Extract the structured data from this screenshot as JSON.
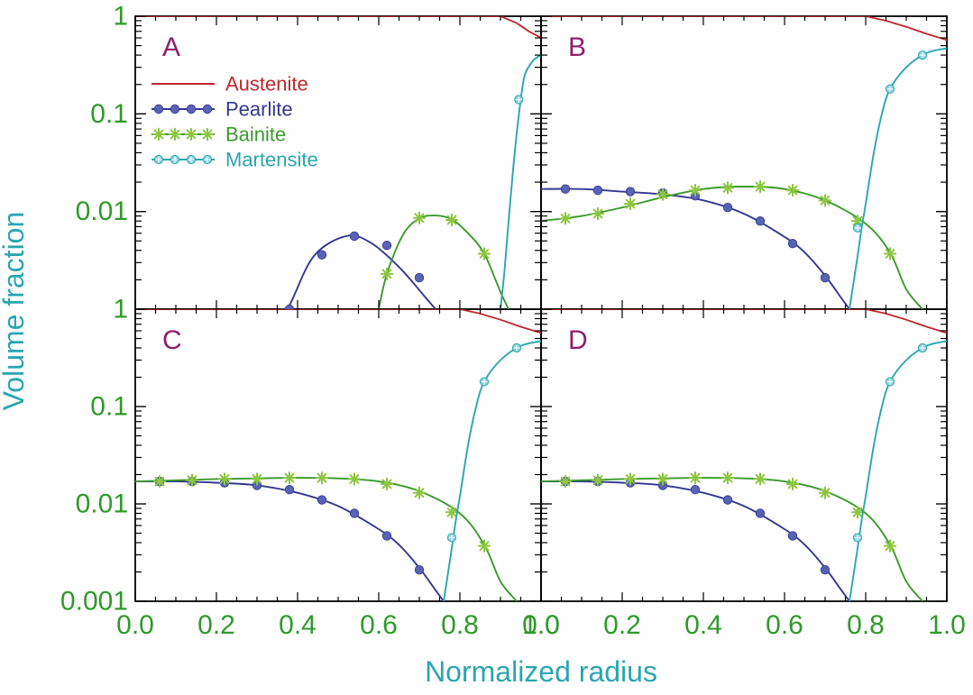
{
  "colors": {
    "austenite": "#c0272d",
    "pearlite": "#34388f",
    "pearlite_marker": "#5a62b6",
    "bainite": "#3a9a2c",
    "bainite_marker": "#8cc63f",
    "martensite": "#2aa6b0",
    "martensite_marker": "#8fd3e0",
    "tick_label": "#2f9a2a",
    "axis_title": "#2aa6b0",
    "panel_letter": "#8e1f6e",
    "frame": "#000000"
  },
  "chart_data": {
    "type": "line",
    "xlabel": "Normalized radius",
    "ylabel": "Volume fraction",
    "xlim": [
      0.0,
      1.0
    ],
    "ylim": [
      0.001,
      1
    ],
    "yscale": "log",
    "x_tick_labels": [
      "0.0",
      "0.2",
      "0.4",
      "0.6",
      "0.8",
      "1.0"
    ],
    "x_tick_values": [
      0.0,
      0.2,
      0.4,
      0.6,
      0.8,
      1.0
    ],
    "y_tick_labels_top_row": [
      "1",
      "0.1",
      "0.01",
      ""
    ],
    "y_tick_labels_bottom_row": [
      "1",
      "0.1",
      "0.01",
      "0.001"
    ],
    "y_tick_values": [
      1,
      0.1,
      0.01,
      0.001
    ],
    "legend": {
      "placement": "top-left of panel A",
      "entries": [
        {
          "key": "austenite",
          "label": "Austenite",
          "marker": "none"
        },
        {
          "key": "pearlite",
          "label": "Pearlite",
          "marker": "dot"
        },
        {
          "key": "bainite",
          "label": "Bainite",
          "marker": "star"
        },
        {
          "key": "martensite",
          "label": "Martensite",
          "marker": "circle-plus"
        }
      ]
    },
    "panels": [
      {
        "label": "A",
        "series": [
          {
            "key": "austenite",
            "x": [
              0.0,
              0.9,
              0.94,
              0.97,
              1.0
            ],
            "y": [
              1.0,
              1.0,
              0.85,
              0.7,
              0.6
            ],
            "markers_x": [],
            "markers_y": []
          },
          {
            "key": "pearlite",
            "x": [
              0.36,
              0.38,
              0.44,
              0.52,
              0.58,
              0.65,
              0.71,
              0.74
            ],
            "y": [
              0.001,
              0.0011,
              0.0035,
              0.0056,
              0.0048,
              0.0027,
              0.0014,
              0.001
            ],
            "markers_x": [
              0.38,
              0.46,
              0.54,
              0.62,
              0.7
            ],
            "markers_y": [
              0.001,
              0.0036,
              0.0056,
              0.0045,
              0.0021
            ]
          },
          {
            "key": "bainite",
            "x": [
              0.6,
              0.62,
              0.66,
              0.7,
              0.74,
              0.78,
              0.82,
              0.86,
              0.9,
              0.92
            ],
            "y": [
              0.001,
              0.0023,
              0.0058,
              0.0085,
              0.0091,
              0.0083,
              0.006,
              0.0037,
              0.0015,
              0.001
            ],
            "markers_x": [
              0.62,
              0.7,
              0.78,
              0.86
            ],
            "markers_y": [
              0.0023,
              0.0086,
              0.0082,
              0.0037
            ]
          },
          {
            "key": "martensite",
            "x": [
              0.9,
              0.91,
              0.92,
              0.935,
              0.95,
              0.96,
              0.98,
              1.0
            ],
            "y": [
              0.001,
              0.0025,
              0.008,
              0.04,
              0.14,
              0.25,
              0.35,
              0.4
            ],
            "markers_x": [
              0.945
            ],
            "markers_y": [
              0.14
            ]
          }
        ]
      },
      {
        "label": "B",
        "series": [
          {
            "key": "austenite",
            "x": [
              0.0,
              0.8,
              0.85,
              0.9,
              0.95,
              1.0
            ],
            "y": [
              1.0,
              1.0,
              0.9,
              0.78,
              0.66,
              0.57
            ],
            "markers_x": [],
            "markers_y": []
          },
          {
            "key": "pearlite",
            "x": [
              0.0,
              0.1,
              0.2,
              0.3,
              0.4,
              0.5,
              0.6,
              0.65,
              0.7,
              0.74,
              0.76
            ],
            "y": [
              0.017,
              0.017,
              0.016,
              0.015,
              0.013,
              0.0095,
              0.0055,
              0.0038,
              0.0022,
              0.0013,
              0.001
            ],
            "markers_x": [
              0.06,
              0.14,
              0.22,
              0.3,
              0.38,
              0.46,
              0.54,
              0.62,
              0.7
            ],
            "markers_y": [
              0.017,
              0.0165,
              0.016,
              0.0155,
              0.0145,
              0.011,
              0.008,
              0.0047,
              0.0021
            ]
          },
          {
            "key": "bainite",
            "x": [
              0.0,
              0.1,
              0.2,
              0.3,
              0.4,
              0.5,
              0.6,
              0.7,
              0.8,
              0.86,
              0.9,
              0.94
            ],
            "y": [
              0.008,
              0.009,
              0.011,
              0.014,
              0.017,
              0.018,
              0.017,
              0.013,
              0.0075,
              0.0038,
              0.0016,
              0.001
            ],
            "markers_x": [
              0.06,
              0.14,
              0.22,
              0.3,
              0.38,
              0.46,
              0.54,
              0.62,
              0.7,
              0.78,
              0.86
            ],
            "markers_y": [
              0.0085,
              0.0095,
              0.012,
              0.015,
              0.0165,
              0.0175,
              0.018,
              0.0165,
              0.013,
              0.008,
              0.0037
            ]
          },
          {
            "key": "martensite",
            "x": [
              0.76,
              0.78,
              0.79,
              0.8,
              0.82,
              0.84,
              0.86,
              0.9,
              0.95,
              1.0
            ],
            "y": [
              0.001,
              0.0035,
              0.0068,
              0.012,
              0.04,
              0.1,
              0.18,
              0.3,
              0.42,
              0.47
            ],
            "markers_x": [
              0.78,
              0.86,
              0.94
            ],
            "markers_y": [
              0.0068,
              0.18,
              0.4
            ]
          }
        ]
      },
      {
        "label": "C",
        "series": [
          {
            "key": "austenite",
            "x": [
              0.0,
              0.8,
              0.85,
              0.9,
              0.95,
              1.0
            ],
            "y": [
              1.0,
              1.0,
              0.9,
              0.78,
              0.66,
              0.57
            ],
            "markers_x": [],
            "markers_y": []
          },
          {
            "key": "pearlite",
            "x": [
              0.0,
              0.1,
              0.2,
              0.3,
              0.4,
              0.5,
              0.6,
              0.65,
              0.7,
              0.74,
              0.76
            ],
            "y": [
              0.017,
              0.017,
              0.0165,
              0.0155,
              0.013,
              0.0095,
              0.0055,
              0.0038,
              0.0022,
              0.0013,
              0.001
            ],
            "markers_x": [
              0.06,
              0.14,
              0.22,
              0.3,
              0.38,
              0.46,
              0.54,
              0.62,
              0.7
            ],
            "markers_y": [
              0.017,
              0.017,
              0.0165,
              0.0155,
              0.014,
              0.011,
              0.008,
              0.0047,
              0.0021
            ]
          },
          {
            "key": "bainite",
            "x": [
              0.0,
              0.1,
              0.2,
              0.3,
              0.4,
              0.5,
              0.6,
              0.7,
              0.8,
              0.86,
              0.9,
              0.94
            ],
            "y": [
              0.017,
              0.0175,
              0.018,
              0.0183,
              0.0185,
              0.0183,
              0.017,
              0.0135,
              0.008,
              0.0038,
              0.0016,
              0.001
            ],
            "markers_x": [
              0.06,
              0.14,
              0.22,
              0.3,
              0.38,
              0.46,
              0.54,
              0.62,
              0.7,
              0.78,
              0.86
            ],
            "markers_y": [
              0.017,
              0.0175,
              0.018,
              0.018,
              0.0185,
              0.0185,
              0.018,
              0.016,
              0.013,
              0.0082,
              0.0037
            ]
          },
          {
            "key": "martensite",
            "x": [
              0.76,
              0.78,
              0.79,
              0.8,
              0.82,
              0.84,
              0.86,
              0.9,
              0.95,
              1.0
            ],
            "y": [
              0.001,
              0.0035,
              0.0068,
              0.012,
              0.04,
              0.1,
              0.18,
              0.3,
              0.42,
              0.47
            ],
            "markers_x": [
              0.78,
              0.86,
              0.94
            ],
            "markers_y": [
              0.0045,
              0.18,
              0.4
            ]
          }
        ]
      },
      {
        "label": "D",
        "series": [
          {
            "key": "austenite",
            "x": [
              0.0,
              0.8,
              0.85,
              0.9,
              0.95,
              1.0
            ],
            "y": [
              1.0,
              1.0,
              0.9,
              0.78,
              0.66,
              0.57
            ],
            "markers_x": [],
            "markers_y": []
          },
          {
            "key": "pearlite",
            "x": [
              0.0,
              0.1,
              0.2,
              0.3,
              0.4,
              0.5,
              0.6,
              0.65,
              0.7,
              0.74,
              0.76
            ],
            "y": [
              0.017,
              0.017,
              0.0165,
              0.0155,
              0.013,
              0.0095,
              0.0055,
              0.0038,
              0.0022,
              0.0013,
              0.001
            ],
            "markers_x": [
              0.06,
              0.14,
              0.22,
              0.3,
              0.38,
              0.46,
              0.54,
              0.62,
              0.7
            ],
            "markers_y": [
              0.017,
              0.017,
              0.0165,
              0.0155,
              0.014,
              0.011,
              0.008,
              0.0047,
              0.0021
            ]
          },
          {
            "key": "bainite",
            "x": [
              0.0,
              0.1,
              0.2,
              0.3,
              0.4,
              0.5,
              0.6,
              0.7,
              0.8,
              0.86,
              0.9,
              0.94
            ],
            "y": [
              0.017,
              0.0175,
              0.018,
              0.0183,
              0.0185,
              0.0183,
              0.017,
              0.0135,
              0.008,
              0.0038,
              0.0016,
              0.001
            ],
            "markers_x": [
              0.06,
              0.14,
              0.22,
              0.3,
              0.38,
              0.46,
              0.54,
              0.62,
              0.7,
              0.78,
              0.86
            ],
            "markers_y": [
              0.017,
              0.0175,
              0.018,
              0.018,
              0.0185,
              0.0185,
              0.018,
              0.016,
              0.013,
              0.0082,
              0.0037
            ]
          },
          {
            "key": "martensite",
            "x": [
              0.76,
              0.78,
              0.79,
              0.8,
              0.82,
              0.84,
              0.86,
              0.9,
              0.95,
              1.0
            ],
            "y": [
              0.001,
              0.0035,
              0.0068,
              0.012,
              0.04,
              0.1,
              0.18,
              0.3,
              0.42,
              0.47
            ],
            "markers_x": [
              0.78,
              0.86,
              0.94
            ],
            "markers_y": [
              0.0045,
              0.18,
              0.4
            ]
          }
        ]
      }
    ]
  }
}
